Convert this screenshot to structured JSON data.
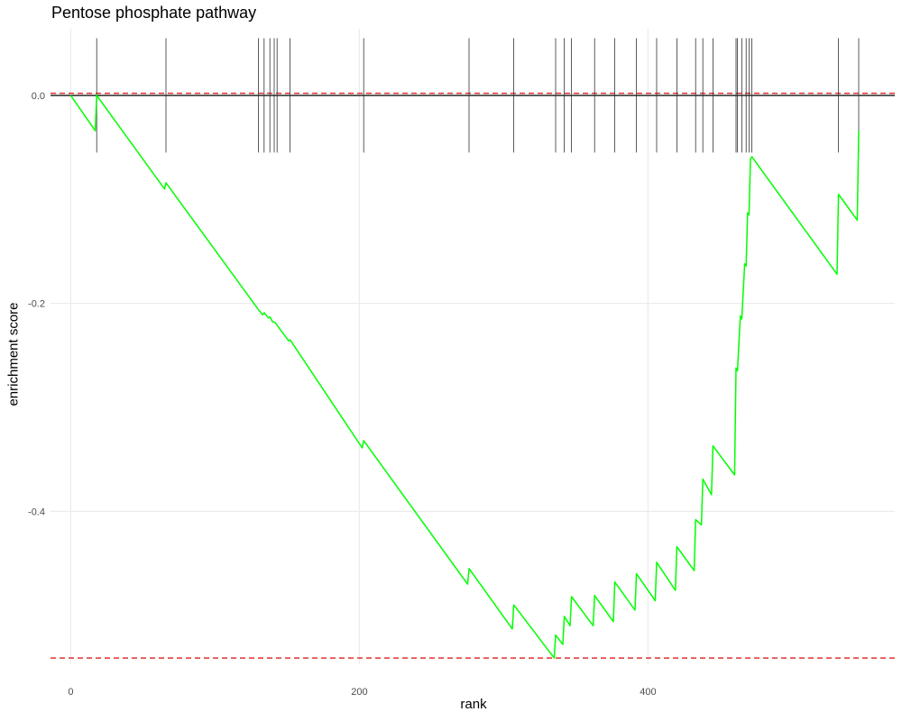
{
  "chart_data": {
    "type": "line",
    "title": "Pentose phosphate pathway",
    "xlabel": "rank",
    "ylabel": "enrichment score",
    "xlim": [
      -14,
      571
    ],
    "ylim": [
      -0.547,
      0.064
    ],
    "x_ticks": [
      0,
      200,
      400
    ],
    "x_tick_labels": [
      "0",
      "200",
      "400"
    ],
    "y_ticks": [
      0.0,
      -0.2,
      -0.4
    ],
    "y_tick_labels": [
      "0.0",
      "-0.2",
      "-0.4"
    ],
    "grid": true,
    "line_color": "#00ff00",
    "hit_color": "#333333",
    "threshold_color": "#e03030",
    "thresholds": [
      0.002,
      -0.541
    ],
    "hits": [
      18,
      66,
      130,
      134,
      138,
      141,
      143,
      152,
      203,
      276,
      307,
      336,
      342,
      347,
      363,
      377,
      392,
      406,
      420,
      433,
      438,
      445,
      461,
      462,
      465,
      468,
      470,
      472,
      532,
      546
    ],
    "series": [
      {
        "name": "",
        "x": [
          0,
          17,
          18,
          65,
          66,
          129,
          130,
          133,
          134,
          137,
          138,
          140,
          141,
          142,
          143,
          151,
          152,
          202,
          203,
          275,
          276,
          306,
          307,
          335,
          336,
          341,
          342,
          346,
          347,
          362,
          363,
          376,
          377,
          391,
          392,
          405,
          406,
          419,
          420,
          432,
          433,
          437,
          438,
          444,
          445,
          460,
          461,
          462,
          464,
          465,
          467,
          468,
          469,
          470,
          471,
          472,
          531,
          532,
          545,
          546
        ],
        "y": [
          0.0,
          -0.034,
          0.0,
          -0.09,
          -0.084,
          -0.204,
          -0.206,
          -0.211,
          -0.209,
          -0.214,
          -0.213,
          -0.218,
          -0.218,
          -0.219,
          -0.221,
          -0.236,
          -0.235,
          -0.339,
          -0.332,
          -0.47,
          -0.455,
          -0.513,
          -0.49,
          -0.541,
          -0.519,
          -0.528,
          -0.501,
          -0.51,
          -0.482,
          -0.51,
          -0.481,
          -0.506,
          -0.468,
          -0.495,
          -0.46,
          -0.486,
          -0.449,
          -0.476,
          -0.434,
          -0.457,
          -0.408,
          -0.413,
          -0.369,
          -0.384,
          -0.337,
          -0.365,
          -0.262,
          -0.265,
          -0.212,
          -0.215,
          -0.162,
          -0.164,
          -0.113,
          -0.115,
          -0.061,
          -0.059,
          -0.172,
          -0.095,
          -0.12,
          -0.034
        ]
      }
    ]
  }
}
